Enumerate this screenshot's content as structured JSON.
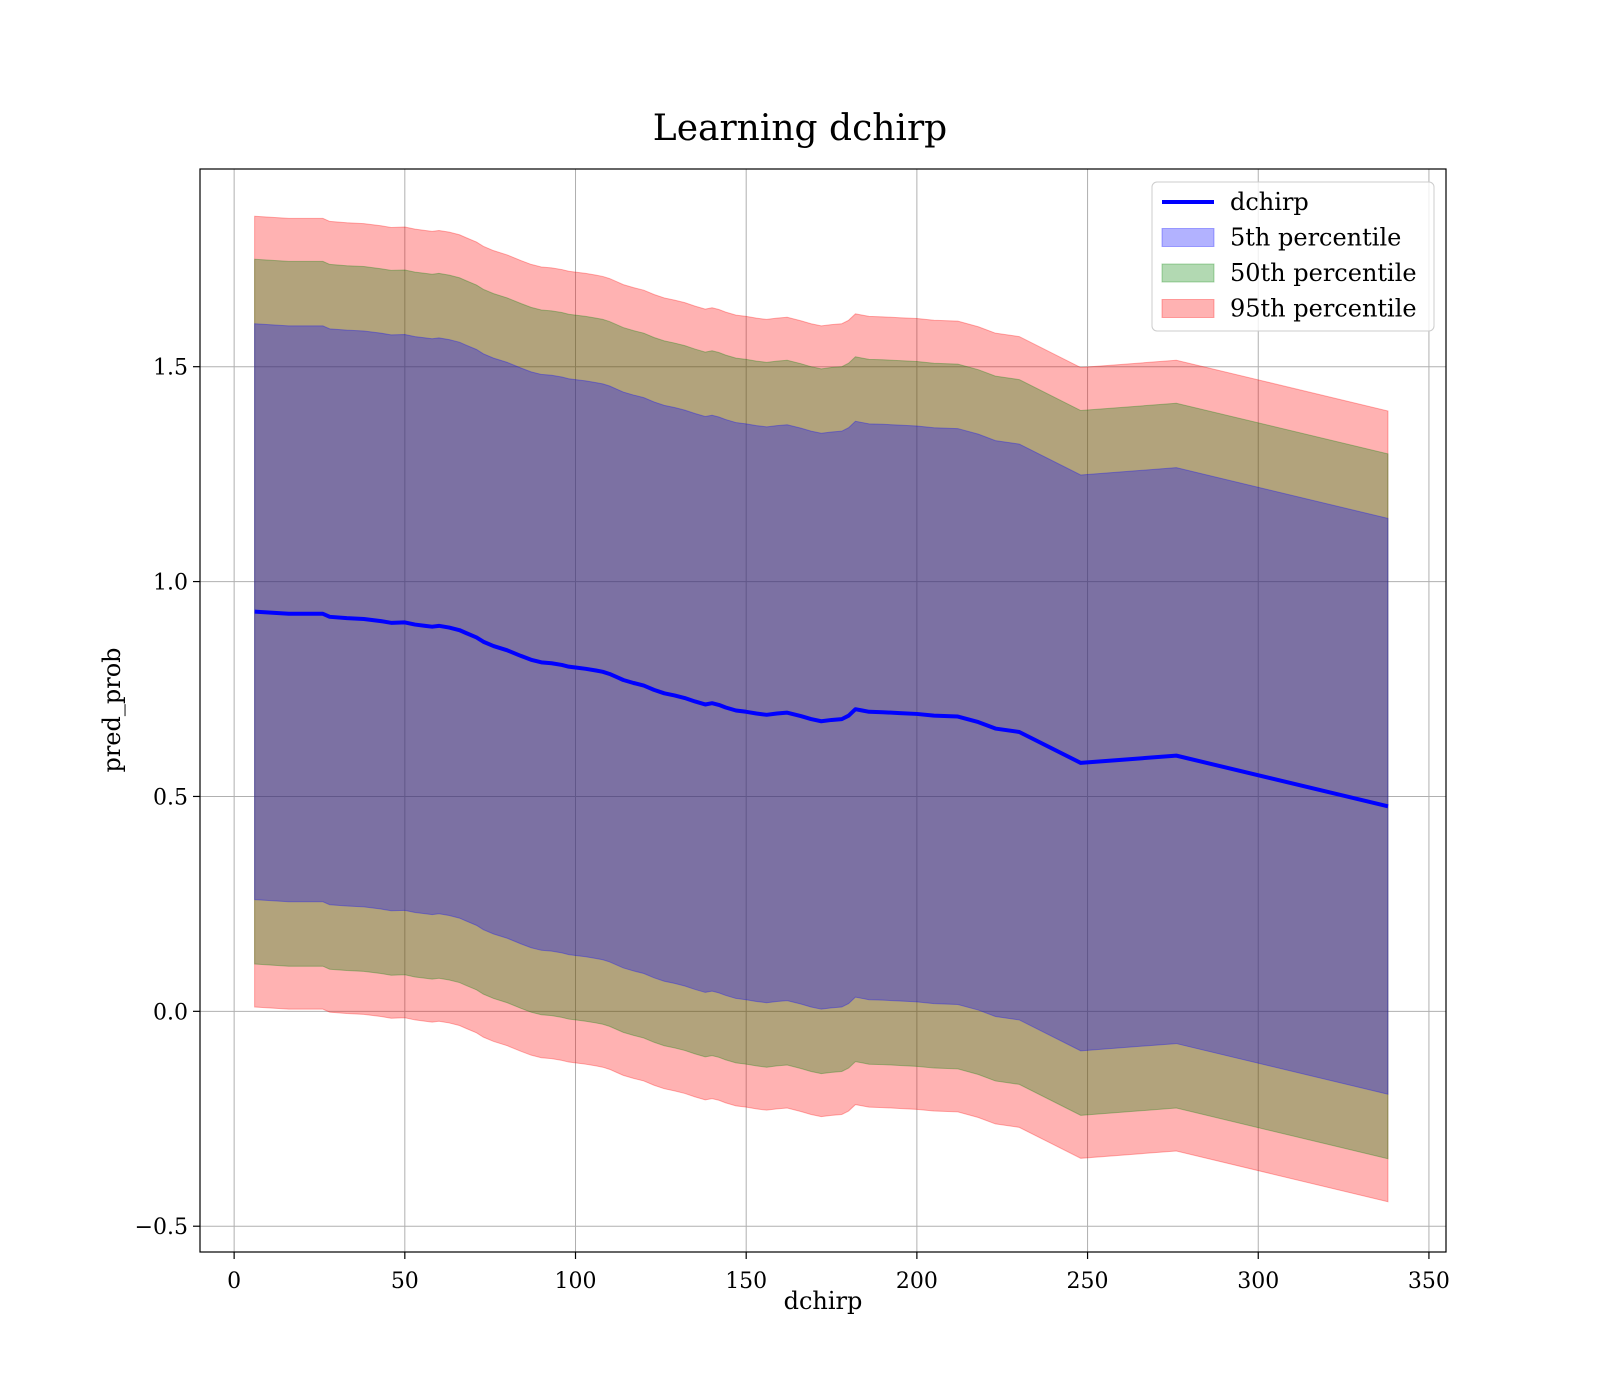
{
  "chart_data": {
    "type": "area",
    "title": "Learning dchirp",
    "xlabel": "dchirp",
    "ylabel": "pred_prob",
    "xlim": [
      -10,
      355
    ],
    "ylim": [
      -0.56,
      1.96
    ],
    "xticks": [
      0,
      50,
      100,
      150,
      200,
      250,
      300,
      350
    ],
    "xtick_labels": [
      "0",
      "50",
      "100",
      "150",
      "200",
      "250",
      "300",
      "350"
    ],
    "yticks": [
      -0.5,
      0.0,
      0.5,
      1.0,
      1.5
    ],
    "ytick_labels": [
      "−0.5",
      "0.0",
      "0.5",
      "1.0",
      "1.5"
    ],
    "grid": true,
    "legend_position": "top-right",
    "x": [
      6,
      16,
      26,
      28,
      33,
      38,
      43,
      46,
      50,
      53,
      56,
      58,
      60,
      63,
      66,
      68,
      71,
      73,
      76,
      80,
      84,
      87,
      90,
      93,
      96,
      98,
      100,
      103,
      106,
      108,
      110,
      112,
      114,
      117,
      120,
      123,
      126,
      129,
      132,
      135,
      138,
      140,
      142,
      144,
      147,
      150,
      153,
      156,
      159,
      162,
      166,
      169,
      172,
      175,
      178,
      180,
      182,
      184,
      186,
      190,
      195,
      200,
      205,
      212,
      218,
      223,
      230,
      248,
      276,
      338
    ],
    "series": [
      {
        "name": "dchirp",
        "role": "line",
        "color": "#0000ff",
        "values": [
          0.93,
          0.925,
          0.925,
          0.918,
          0.915,
          0.913,
          0.908,
          0.904,
          0.905,
          0.9,
          0.897,
          0.895,
          0.897,
          0.893,
          0.887,
          0.88,
          0.87,
          0.86,
          0.85,
          0.84,
          0.827,
          0.818,
          0.812,
          0.81,
          0.806,
          0.802,
          0.8,
          0.797,
          0.793,
          0.79,
          0.785,
          0.778,
          0.771,
          0.764,
          0.758,
          0.748,
          0.74,
          0.735,
          0.729,
          0.721,
          0.714,
          0.717,
          0.713,
          0.707,
          0.7,
          0.697,
          0.693,
          0.69,
          0.693,
          0.695,
          0.687,
          0.68,
          0.675,
          0.678,
          0.68,
          0.688,
          0.703,
          0.7,
          0.697,
          0.696,
          0.694,
          0.692,
          0.688,
          0.686,
          0.673,
          0.658,
          0.65,
          0.578,
          0.595,
          0.477
        ]
      },
      {
        "name": "5th percentile",
        "role": "band",
        "color": "#0000ff",
        "offset": 0.67
      },
      {
        "name": "50th percentile",
        "role": "band",
        "color": "#008000",
        "offset": 0.82
      },
      {
        "name": "95th percentile",
        "role": "band",
        "color": "#ff0000",
        "offset": 0.92
      }
    ]
  }
}
